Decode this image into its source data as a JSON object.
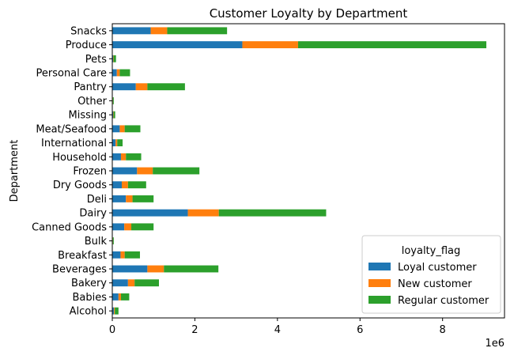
{
  "chart_data": {
    "type": "bar",
    "orientation": "horizontal",
    "stacked": true,
    "title": "Customer Loyalty by Department",
    "ylabel": "Department",
    "xlabel": "",
    "x_scale_label": "1e6",
    "xlim": [
      0,
      9500000
    ],
    "x_ticks": [
      0,
      2000000,
      4000000,
      6000000,
      8000000
    ],
    "x_tick_labels": [
      "0",
      "2",
      "4",
      "6",
      "8"
    ],
    "grid": false,
    "legend_title": "loyalty_flag",
    "legend_position": "lower-right",
    "categories": [
      "Alcohol",
      "Babies",
      "Bakery",
      "Beverages",
      "Breakfast",
      "Bulk",
      "Canned Goods",
      "Dairy",
      "Deli",
      "Dry Goods",
      "Frozen",
      "Household",
      "International",
      "Meat/Seafood",
      "Missing",
      "Other",
      "Pantry",
      "Personal Care",
      "Pets",
      "Produce",
      "Snacks"
    ],
    "series": [
      {
        "name": "Loyal customer",
        "color": "#1f77b4",
        "values": [
          40000,
          150000,
          380000,
          850000,
          200000,
          10000,
          290000,
          1830000,
          330000,
          230000,
          600000,
          210000,
          80000,
          180000,
          20000,
          10000,
          570000,
          110000,
          20000,
          3150000,
          930000
        ]
      },
      {
        "name": "New customer",
        "color": "#ff7f0e",
        "values": [
          20000,
          60000,
          160000,
          400000,
          100000,
          5000,
          170000,
          750000,
          160000,
          150000,
          380000,
          120000,
          40000,
          120000,
          10000,
          5000,
          280000,
          70000,
          10000,
          1350000,
          400000
        ]
      },
      {
        "name": "Regular customer",
        "color": "#2ca02c",
        "values": [
          90000,
          200000,
          590000,
          1320000,
          370000,
          20000,
          540000,
          2600000,
          510000,
          440000,
          1130000,
          370000,
          130000,
          380000,
          40000,
          20000,
          910000,
          250000,
          60000,
          4560000,
          1450000
        ]
      }
    ]
  }
}
